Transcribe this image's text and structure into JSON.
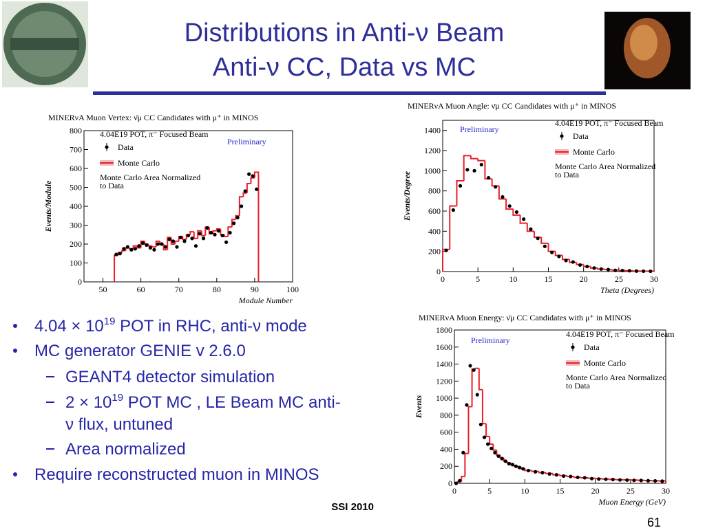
{
  "header": {
    "title_lines": [
      "Distributions in Anti-ν Beam",
      "Anti-ν CC, Data vs MC"
    ]
  },
  "bullets": [
    {
      "level": 1,
      "text": "4.04 × 10",
      "sup": "19",
      "after": " POT in RHC, anti-ν mode"
    },
    {
      "level": 1,
      "text": "MC generator GENIE v 2.6.0"
    },
    {
      "level": 2,
      "text": "GEANT4 detector simulation"
    },
    {
      "level": 2,
      "text": "2 × 10",
      "sup": "19",
      "after": " POT MC , LE Beam MC anti-",
      "cont": "ν flux, untuned"
    },
    {
      "level": 2,
      "text": "Area normalized"
    },
    {
      "level": 1,
      "text": "Require reconstructed muon in MINOS"
    }
  ],
  "footer": {
    "text": "SSI 2010",
    "page": "61"
  },
  "chart_data": [
    {
      "type": "histogram",
      "title": "MINERνA Muon Vertex: ν̄μ CC Candidates with μ⁺ in MINOS",
      "xlabel": "Module Number",
      "ylabel": "Events/Module",
      "annotations": [
        "Preliminary",
        "4.04E19 POT, π⁻ Focused Beam",
        "Monte Carlo Area Normalized",
        "to Data"
      ],
      "bins": [
        53,
        54,
        55,
        56,
        57,
        58,
        59,
        60,
        61,
        62,
        63,
        64,
        65,
        66,
        67,
        68,
        69,
        70,
        71,
        72,
        73,
        74,
        75,
        76,
        77,
        78,
        79,
        80,
        81,
        82,
        83,
        84,
        85,
        86,
        87,
        88,
        89,
        90,
        91
      ],
      "series": [
        {
          "name": "Monte Carlo",
          "color": "#e8202a",
          "values": [
            140,
            155,
            165,
            180,
            175,
            190,
            180,
            215,
            200,
            190,
            185,
            215,
            200,
            170,
            235,
            200,
            215,
            240,
            225,
            250,
            265,
            230,
            270,
            245,
            290,
            255,
            270,
            280,
            250,
            240,
            290,
            330,
            350,
            450,
            470,
            520,
            550,
            580
          ]
        },
        {
          "name": "Data",
          "color": "#000000",
          "values": [
            145,
            150,
            175,
            185,
            170,
            175,
            190,
            205,
            195,
            180,
            170,
            200,
            200,
            185,
            225,
            215,
            185,
            235,
            215,
            245,
            230,
            190,
            255,
            230,
            285,
            260,
            250,
            270,
            245,
            210,
            260,
            310,
            340,
            400,
            480,
            570,
            560,
            490
          ]
        }
      ],
      "xlim": [
        45,
        100
      ],
      "xticks": [
        50,
        60,
        70,
        80,
        90,
        100
      ],
      "ylim": [
        0,
        800
      ],
      "yticks": [
        0,
        100,
        200,
        300,
        400,
        500,
        600,
        700,
        800
      ]
    },
    {
      "type": "histogram",
      "title": "MINERνA Muon Angle: ν̄μ CC Candidates with μ⁺ in MINOS",
      "xlabel": "Theta (Degrees)",
      "ylabel": "Events/Degree",
      "annotations": [
        "Preliminary",
        "4.04E19 POT, π⁻ Focused Beam",
        "Monte Carlo Area Normalized",
        "to Data"
      ],
      "bins": [
        0,
        1,
        2,
        3,
        4,
        5,
        6,
        7,
        8,
        9,
        10,
        11,
        12,
        13,
        14,
        15,
        16,
        17,
        18,
        19,
        20,
        21,
        22,
        23,
        24,
        25,
        26,
        27,
        28,
        29,
        30
      ],
      "series": [
        {
          "name": "Monte Carlo",
          "color": "#e8202a",
          "values": [
            220,
            650,
            900,
            1150,
            1120,
            1100,
            920,
            850,
            720,
            620,
            560,
            480,
            400,
            340,
            280,
            200,
            160,
            120,
            90,
            70,
            50,
            35,
            25,
            20,
            15,
            10,
            8,
            5,
            4,
            3
          ]
        },
        {
          "name": "Data",
          "color": "#000000",
          "values": [
            210,
            610,
            850,
            1010,
            1000,
            1060,
            930,
            840,
            740,
            650,
            590,
            520,
            420,
            330,
            250,
            190,
            150,
            110,
            95,
            65,
            50,
            35,
            25,
            20,
            12,
            10,
            8,
            5,
            4,
            3
          ]
        }
      ],
      "xlim": [
        0,
        30
      ],
      "xticks": [
        0,
        5,
        10,
        15,
        20,
        25,
        30
      ],
      "ylim": [
        0,
        1500
      ],
      "yticks": [
        0,
        200,
        400,
        600,
        800,
        1000,
        1200,
        1400
      ]
    },
    {
      "type": "histogram",
      "title": "MINERνA Muon Energy: ν̄μ CC Candidates with μ⁺ in MINOS",
      "xlabel": "Muon Energy (GeV)",
      "ylabel": "Events",
      "annotations": [
        "Preliminary",
        "4.04E19 POT, π⁻ Focused Beam",
        "Monte Carlo Area Normalized",
        "to Data"
      ],
      "bins": [
        0,
        0.5,
        1,
        1.5,
        2,
        2.5,
        3,
        3.5,
        4,
        4.5,
        5,
        5.5,
        6,
        6.5,
        7,
        7.5,
        8,
        8.5,
        9,
        9.5,
        10,
        11,
        12,
        13,
        14,
        15,
        16,
        17,
        18,
        19,
        20,
        21,
        22,
        23,
        24,
        25,
        26,
        27,
        28,
        29,
        30
      ],
      "series": [
        {
          "name": "Monte Carlo",
          "color": "#e8202a",
          "values": [
            0,
            20,
            80,
            350,
            900,
            1340,
            1350,
            1100,
            700,
            550,
            460,
            390,
            330,
            300,
            260,
            240,
            220,
            200,
            190,
            175,
            150,
            140,
            125,
            115,
            100,
            90,
            80,
            70,
            65,
            60,
            55,
            50,
            45,
            42,
            40,
            38,
            35,
            32,
            30,
            28
          ]
        },
        {
          "name": "Data",
          "color": "#000000",
          "values": [
            0,
            30,
            360,
            920,
            1380,
            1330,
            1040,
            690,
            540,
            460,
            410,
            360,
            320,
            290,
            260,
            230,
            220,
            200,
            185,
            170,
            150,
            135,
            125,
            110,
            100,
            85,
            80,
            70,
            65,
            55,
            50,
            48,
            45,
            40,
            38,
            35,
            33,
            30,
            28,
            25
          ]
        }
      ],
      "xlim": [
        0,
        30
      ],
      "xticks": [
        0,
        5,
        10,
        15,
        20,
        25,
        30
      ],
      "ylim": [
        0,
        1800
      ],
      "yticks": [
        0,
        200,
        400,
        600,
        800,
        1000,
        1200,
        1400,
        1600,
        1800
      ]
    }
  ]
}
